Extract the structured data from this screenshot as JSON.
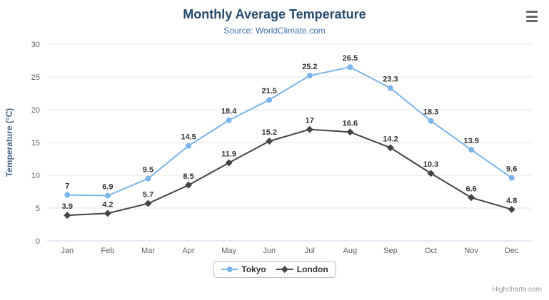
{
  "chart_data": {
    "type": "line",
    "title": "Monthly Average Temperature",
    "subtitle": "Source: WorldClimate.com",
    "categories": [
      "Jan",
      "Feb",
      "Mar",
      "Apr",
      "May",
      "Jun",
      "Jul",
      "Aug",
      "Sep",
      "Oct",
      "Nov",
      "Dec"
    ],
    "series": [
      {
        "name": "Tokyo",
        "color": "#7cb5ec",
        "marker": "circle",
        "values": [
          7,
          6.9,
          9.5,
          14.5,
          18.4,
          21.5,
          25.2,
          26.5,
          23.3,
          18.3,
          13.9,
          9.6
        ]
      },
      {
        "name": "London",
        "color": "#434348",
        "marker": "diamond",
        "values": [
          3.9,
          4.2,
          5.7,
          8.5,
          11.9,
          15.2,
          17,
          16.6,
          14.2,
          10.3,
          6.6,
          4.8
        ]
      }
    ],
    "xlabel": "",
    "ylabel": "Temperature (°C)",
    "ylim": [
      0,
      30
    ],
    "ytick": 5,
    "grid": true,
    "legend_position": "bottom",
    "styles": {
      "title_color": "#274b6d",
      "subtitle_color": "#4170b0",
      "axis_label_color": "#606060",
      "ylabel_color": "#4a6785",
      "data_label_color": "#333333",
      "grid_color": "#e6e6e6",
      "axis_line_color": "#ccd6eb",
      "legend_border_color": "#bbbbbb",
      "credits_color": "#999999"
    }
  },
  "header": {
    "menu_icon": "hamburger"
  },
  "credits": {
    "label": "Highcharts.com"
  }
}
